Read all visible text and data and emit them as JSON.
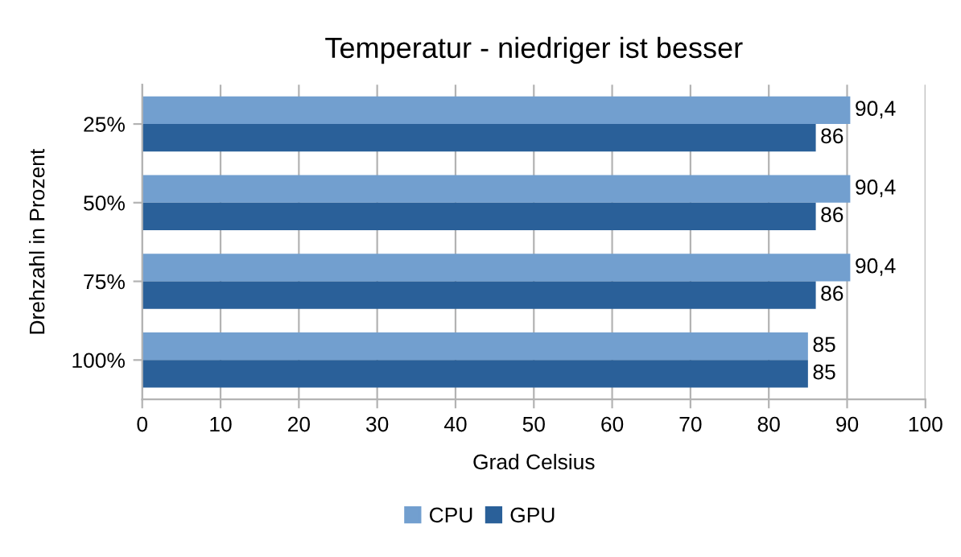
{
  "chart_data": {
    "type": "bar",
    "orientation": "horizontal",
    "title": "Temperatur - niedriger ist besser",
    "xlabel": "Grad Celsius",
    "ylabel": "Drehzahl in Prozent",
    "categories": [
      "25%",
      "50%",
      "75%",
      "100%"
    ],
    "series": [
      {
        "name": "CPU",
        "color": "#729fcf",
        "values": [
          90.4,
          90.4,
          90.4,
          85
        ],
        "value_labels": [
          "90,4",
          "90,4",
          "90,4",
          "85"
        ]
      },
      {
        "name": "GPU",
        "color": "#2a6099",
        "values": [
          86,
          86,
          86,
          85
        ],
        "value_labels": [
          "86",
          "86",
          "86",
          "85"
        ]
      }
    ],
    "xlim": [
      0,
      100
    ],
    "xticks": [
      0,
      10,
      20,
      30,
      40,
      50,
      60,
      70,
      80,
      90,
      100
    ],
    "grid": "x",
    "legend": "bottom"
  }
}
